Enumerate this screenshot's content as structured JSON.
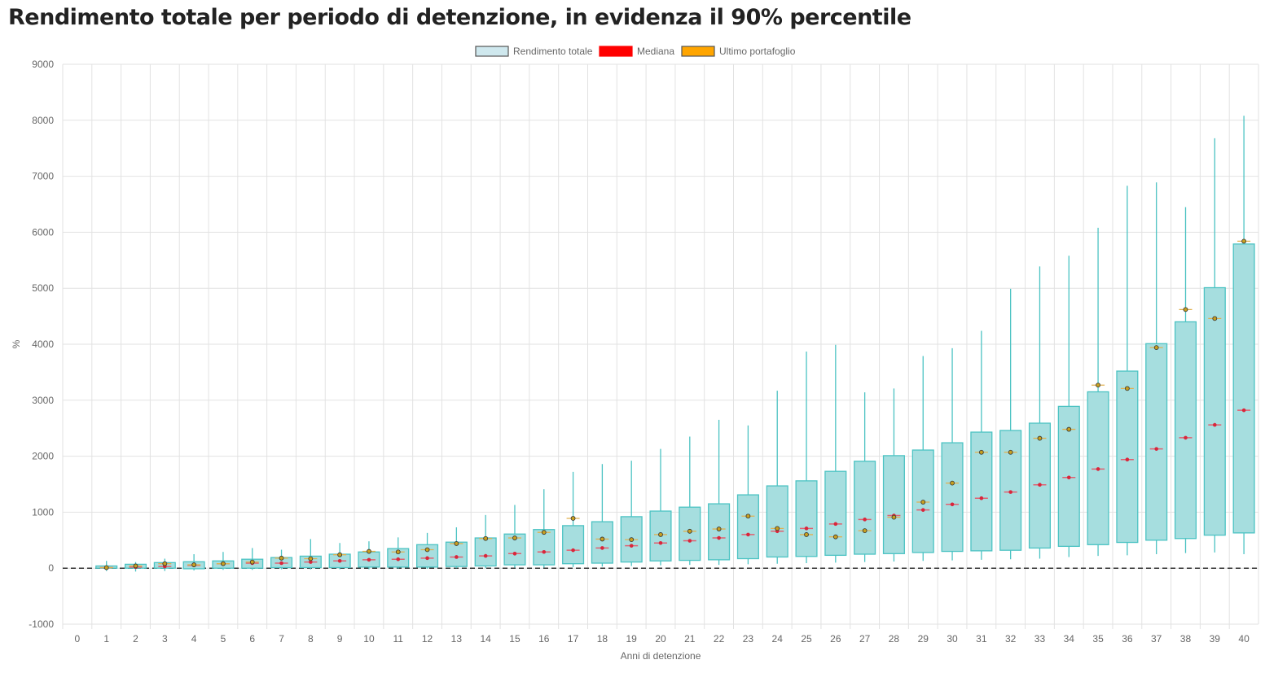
{
  "chart_data": {
    "type": "boxplot",
    "title": "Rendimento totale per periodo di detenzione, in evidenza il 90% percentile",
    "xlabel": "Anni di detenzione",
    "ylabel": "%",
    "ylim": [
      -1000,
      9000
    ],
    "yticks": [
      -1000,
      0,
      1000,
      2000,
      3000,
      4000,
      5000,
      6000,
      7000,
      8000,
      9000
    ],
    "categories": [
      0,
      1,
      2,
      3,
      4,
      5,
      6,
      7,
      8,
      9,
      10,
      11,
      12,
      13,
      14,
      15,
      16,
      17,
      18,
      19,
      20,
      21,
      22,
      23,
      24,
      25,
      26,
      27,
      28,
      29,
      30,
      31,
      32,
      33,
      34,
      35,
      36,
      37,
      38,
      39,
      40
    ],
    "legend": {
      "placement": "top-center",
      "items": [
        {
          "label": "Rendimento totale",
          "color": "#cfe8ee"
        },
        {
          "label": "Mediana",
          "color": "#ff0000"
        },
        {
          "label": "Ultimo portafoglio",
          "color": "#ffa500"
        }
      ]
    },
    "colors": {
      "box_fill": "#a6dedf",
      "box_stroke": "#4cc3c3",
      "median": "#d9263b",
      "last": "#c8a020"
    },
    "series": [
      {
        "x": 1,
        "min": -50,
        "q1": 0,
        "median": 10,
        "q3": 40,
        "max": 130,
        "last": 10
      },
      {
        "x": 2,
        "min": -60,
        "q1": 0,
        "median": 20,
        "q3": 70,
        "max": 110,
        "last": 40
      },
      {
        "x": 3,
        "min": -50,
        "q1": 0,
        "median": 30,
        "q3": 100,
        "max": 170,
        "last": 80
      },
      {
        "x": 4,
        "min": -40,
        "q1": -10,
        "median": 50,
        "q3": 115,
        "max": 250,
        "last": 60
      },
      {
        "x": 5,
        "min": -30,
        "q1": 0,
        "median": 80,
        "q3": 130,
        "max": 290,
        "last": 80
      },
      {
        "x": 6,
        "min": -30,
        "q1": 0,
        "median": 90,
        "q3": 160,
        "max": 360,
        "last": 110
      },
      {
        "x": 7,
        "min": -20,
        "q1": 10,
        "median": 90,
        "q3": 190,
        "max": 330,
        "last": 180
      },
      {
        "x": 8,
        "min": -20,
        "q1": 10,
        "median": 110,
        "q3": 215,
        "max": 520,
        "last": 170
      },
      {
        "x": 9,
        "min": -20,
        "q1": 10,
        "median": 130,
        "q3": 250,
        "max": 450,
        "last": 240
      },
      {
        "x": 10,
        "min": -20,
        "q1": 20,
        "median": 150,
        "q3": 290,
        "max": 480,
        "last": 300
      },
      {
        "x": 11,
        "min": -10,
        "q1": 20,
        "median": 160,
        "q3": 350,
        "max": 550,
        "last": 290
      },
      {
        "x": 12,
        "min": -10,
        "q1": 20,
        "median": 180,
        "q3": 420,
        "max": 630,
        "last": 330
      },
      {
        "x": 13,
        "min": 0,
        "q1": 30,
        "median": 200,
        "q3": 465,
        "max": 730,
        "last": 440
      },
      {
        "x": 14,
        "min": 0,
        "q1": 40,
        "median": 220,
        "q3": 540,
        "max": 950,
        "last": 530
      },
      {
        "x": 15,
        "min": 10,
        "q1": 60,
        "median": 260,
        "q3": 610,
        "max": 1130,
        "last": 540
      },
      {
        "x": 16,
        "min": 10,
        "q1": 60,
        "median": 290,
        "q3": 690,
        "max": 1410,
        "last": 640
      },
      {
        "x": 17,
        "min": 20,
        "q1": 80,
        "median": 320,
        "q3": 760,
        "max": 1720,
        "last": 890
      },
      {
        "x": 18,
        "min": 30,
        "q1": 90,
        "median": 360,
        "q3": 830,
        "max": 1860,
        "last": 520
      },
      {
        "x": 19,
        "min": 40,
        "q1": 110,
        "median": 400,
        "q3": 920,
        "max": 1920,
        "last": 510
      },
      {
        "x": 20,
        "min": 50,
        "q1": 130,
        "median": 450,
        "q3": 1020,
        "max": 2130,
        "last": 600
      },
      {
        "x": 21,
        "min": 60,
        "q1": 140,
        "median": 490,
        "q3": 1090,
        "max": 2350,
        "last": 660
      },
      {
        "x": 22,
        "min": 60,
        "q1": 150,
        "median": 540,
        "q3": 1150,
        "max": 2650,
        "last": 700
      },
      {
        "x": 23,
        "min": 70,
        "q1": 170,
        "median": 600,
        "q3": 1310,
        "max": 2550,
        "last": 930
      },
      {
        "x": 24,
        "min": 80,
        "q1": 200,
        "median": 660,
        "q3": 1470,
        "max": 3170,
        "last": 710
      },
      {
        "x": 25,
        "min": 90,
        "q1": 210,
        "median": 710,
        "q3": 1560,
        "max": 3870,
        "last": 600
      },
      {
        "x": 26,
        "min": 100,
        "q1": 230,
        "median": 790,
        "q3": 1730,
        "max": 3990,
        "last": 560
      },
      {
        "x": 27,
        "min": 110,
        "q1": 250,
        "median": 870,
        "q3": 1910,
        "max": 3140,
        "last": 670
      },
      {
        "x": 28,
        "min": 120,
        "q1": 260,
        "median": 940,
        "q3": 2010,
        "max": 3210,
        "last": 910
      },
      {
        "x": 29,
        "min": 130,
        "q1": 280,
        "median": 1040,
        "q3": 2110,
        "max": 3790,
        "last": 1180
      },
      {
        "x": 30,
        "min": 140,
        "q1": 300,
        "median": 1140,
        "q3": 2240,
        "max": 3930,
        "last": 1520
      },
      {
        "x": 31,
        "min": 150,
        "q1": 310,
        "median": 1250,
        "q3": 2430,
        "max": 4240,
        "last": 2070
      },
      {
        "x": 32,
        "min": 160,
        "q1": 320,
        "median": 1360,
        "q3": 2460,
        "max": 4990,
        "last": 2070
      },
      {
        "x": 33,
        "min": 170,
        "q1": 360,
        "median": 1490,
        "q3": 2590,
        "max": 5390,
        "last": 2320
      },
      {
        "x": 34,
        "min": 200,
        "q1": 390,
        "median": 1620,
        "q3": 2890,
        "max": 5580,
        "last": 2480
      },
      {
        "x": 35,
        "min": 220,
        "q1": 420,
        "median": 1770,
        "q3": 3150,
        "max": 6080,
        "last": 3270
      },
      {
        "x": 36,
        "min": 230,
        "q1": 460,
        "median": 1940,
        "q3": 3520,
        "max": 6830,
        "last": 3210
      },
      {
        "x": 37,
        "min": 250,
        "q1": 500,
        "median": 2130,
        "q3": 4010,
        "max": 6890,
        "last": 3940
      },
      {
        "x": 38,
        "min": 270,
        "q1": 530,
        "median": 2330,
        "q3": 4400,
        "max": 6450,
        "last": 4620
      },
      {
        "x": 39,
        "min": 280,
        "q1": 590,
        "median": 2560,
        "q3": 5010,
        "max": 7680,
        "last": 4460
      },
      {
        "x": 40,
        "min": 250,
        "q1": 630,
        "median": 2820,
        "q3": 5790,
        "max": 8080,
        "last": 5840
      }
    ]
  }
}
